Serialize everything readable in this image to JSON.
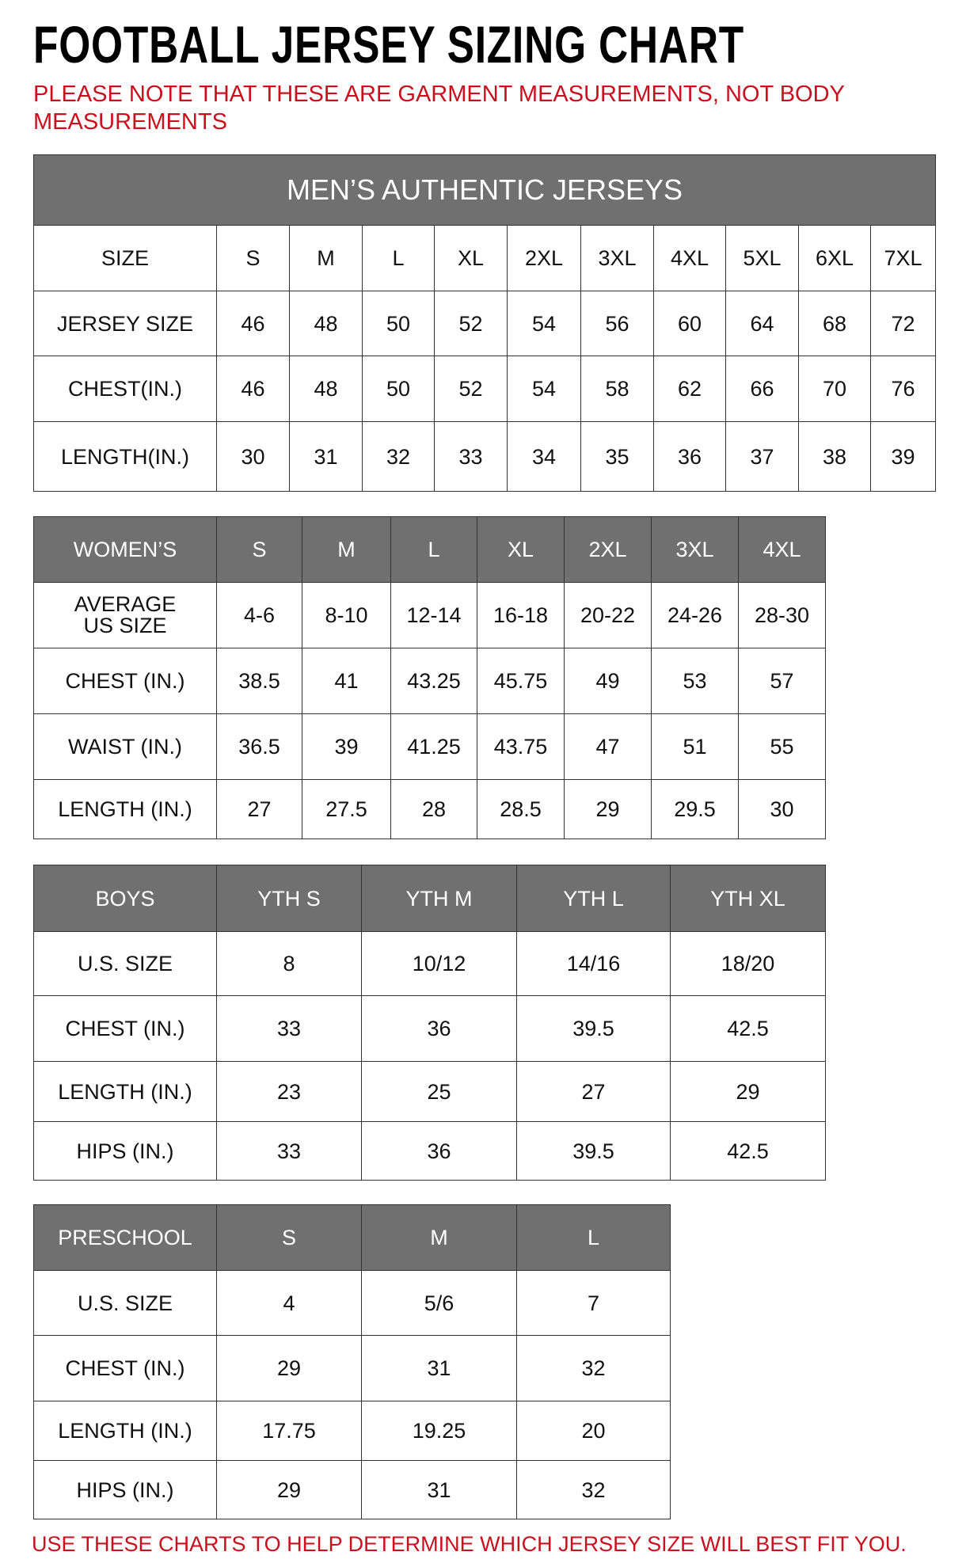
{
  "title": "FOOTBALL JERSEY SIZING CHART",
  "note": "PLEASE NOTE THAT THESE ARE GARMENT MEASUREMENTS, NOT BODY MEASUREMENTS",
  "footer": "USE THESE CHARTS TO HELP DETERMINE WHICH JERSEY SIZE WILL BEST FIT YOU.",
  "colors": {
    "header_bg": "#707070",
    "note_red": "#c8101e"
  },
  "tables": [
    {
      "id": "mens",
      "banner": "MEN’S AUTHENTIC JERSEYS",
      "header": null,
      "rows": [
        [
          "SIZE",
          "S",
          "M",
          "L",
          "XL",
          "2XL",
          "3XL",
          "4XL",
          "5XL",
          "6XL",
          "7XL"
        ],
        [
          "JERSEY SIZE",
          "46",
          "48",
          "50",
          "52",
          "54",
          "56",
          "60",
          "64",
          "68",
          "72"
        ],
        [
          "CHEST(IN.)",
          "46",
          "48",
          "50",
          "52",
          "54",
          "58",
          "62",
          "66",
          "70",
          "76"
        ],
        [
          "LENGTH(IN.)",
          "30",
          "31",
          "32",
          "33",
          "34",
          "35",
          "36",
          "37",
          "38",
          "39"
        ]
      ]
    },
    {
      "id": "womens",
      "header": [
        "WOMEN’S",
        "S",
        "M",
        "L",
        "XL",
        "2XL",
        "3XL",
        "4XL"
      ],
      "rows": [
        [
          "AVERAGE US SIZE",
          "4-6",
          "8-10",
          "12-14",
          "16-18",
          "20-22",
          "24-26",
          "28-30"
        ],
        [
          "CHEST (IN.)",
          "38.5",
          "41",
          "43.25",
          "45.75",
          "49",
          "53",
          "57"
        ],
        [
          "WAIST (IN.)",
          "36.5",
          "39",
          "41.25",
          "43.75",
          "47",
          "51",
          "55"
        ],
        [
          "LENGTH (IN.)",
          "27",
          "27.5",
          "28",
          "28.5",
          "29",
          "29.5",
          "30"
        ]
      ]
    },
    {
      "id": "boys",
      "header": [
        "BOYS",
        "YTH S",
        "YTH M",
        "YTH L",
        "YTH XL"
      ],
      "rows": [
        [
          "U.S. SIZE",
          "8",
          "10/12",
          "14/16",
          "18/20"
        ],
        [
          "CHEST (IN.)",
          "33",
          "36",
          "39.5",
          "42.5"
        ],
        [
          "LENGTH (IN.)",
          "23",
          "25",
          "27",
          "29"
        ],
        [
          "HIPS (IN.)",
          "33",
          "36",
          "39.5",
          "42.5"
        ]
      ]
    },
    {
      "id": "preschool",
      "header": [
        "PRESCHOOL",
        "S",
        "M",
        "L"
      ],
      "rows": [
        [
          "U.S. SIZE",
          "4",
          "5/6",
          "7"
        ],
        [
          "CHEST (IN.)",
          "29",
          "31",
          "32"
        ],
        [
          "LENGTH (IN.)",
          "17.75",
          "19.25",
          "20"
        ],
        [
          "HIPS (IN.)",
          "29",
          "31",
          "32"
        ]
      ]
    }
  ]
}
